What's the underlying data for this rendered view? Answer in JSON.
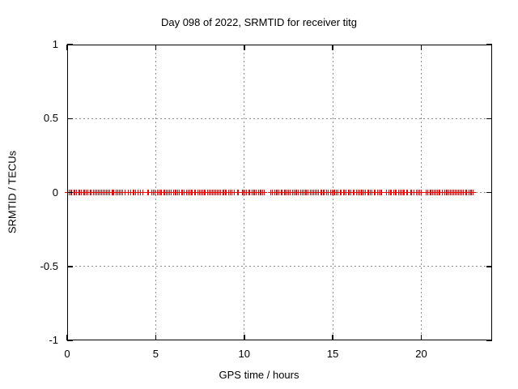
{
  "chart_data": {
    "type": "scatter",
    "title": "Day 098 of 2022, SRMTID for receiver titg",
    "xlabel": "GPS time / hours",
    "ylabel": "SRMTID / TECUs",
    "xlim": [
      0,
      24
    ],
    "ylim": [
      -1,
      1
    ],
    "x_ticks": [
      {
        "v": 0,
        "label": "0"
      },
      {
        "v": 5,
        "label": "5"
      },
      {
        "v": 10,
        "label": "10"
      },
      {
        "v": 15,
        "label": "15"
      },
      {
        "v": 20,
        "label": "20"
      }
    ],
    "y_ticks": [
      {
        "v": 1,
        "label": "1"
      },
      {
        "v": 0.5,
        "label": "0.5"
      },
      {
        "v": 0,
        "label": "0"
      },
      {
        "v": -0.5,
        "label": "-0.5"
      },
      {
        "v": -1,
        "label": "-1"
      }
    ],
    "grid": true,
    "legend": "none",
    "marker": "plus",
    "marker_color": "#ff0000",
    "grid_color": "#8c8c8c",
    "frame_color": "#000000",
    "series": [
      {
        "name": "SRMTID",
        "y_constant": 0,
        "x_start": 0,
        "x_end": 22.95,
        "n_points": 250,
        "gaps": [
          [
            4.3,
            4.45
          ],
          [
            4.6,
            4.75
          ],
          [
            9.7,
            9.8
          ],
          [
            11.2,
            11.45
          ],
          [
            14.55,
            14.65
          ],
          [
            17.85,
            17.95
          ],
          [
            20.0,
            20.2
          ]
        ]
      }
    ]
  }
}
